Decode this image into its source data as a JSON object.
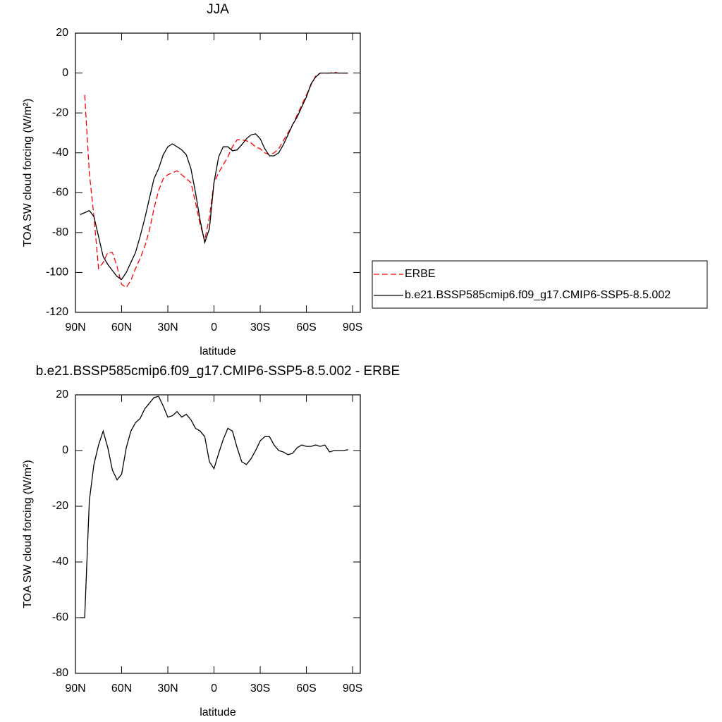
{
  "chart_data": [
    {
      "type": "line",
      "title": "JJA",
      "x_label": "latitude",
      "y_label": "TOA SW cloud forcing (W/m²)",
      "x": [
        87,
        84,
        81,
        78,
        75,
        72,
        69,
        66,
        63,
        60,
        57,
        54,
        51,
        48,
        45,
        42,
        39,
        36,
        33,
        30,
        27,
        24,
        21,
        18,
        15,
        12,
        9,
        6,
        3,
        0,
        -3,
        -6,
        -9,
        -12,
        -15,
        -18,
        -21,
        -24,
        -27,
        -30,
        -33,
        -36,
        -39,
        -42,
        -45,
        -48,
        -51,
        -54,
        -57,
        -60,
        -63,
        -66,
        -69,
        -72,
        -75,
        -78,
        -81,
        -84,
        -87
      ],
      "series": [
        {
          "name": "ERBE",
          "color": "#ff0000",
          "line_style": "dashed",
          "values": [
            null,
            -11,
            -50,
            -72,
            -98,
            -95,
            -90,
            -90,
            -97,
            -106,
            -107.5,
            -104,
            -98,
            -93,
            -87,
            -79,
            -68,
            -59,
            -53,
            -51,
            -50,
            -49,
            -51,
            -53,
            -55,
            -65,
            -76,
            -84,
            -72,
            -55,
            -50,
            -46,
            -42,
            -37,
            -33.5,
            -33.5,
            -34,
            -35,
            -37,
            -38,
            -40,
            -41,
            -40,
            -38,
            -34,
            -30,
            -26,
            -21,
            -16,
            -11,
            -6,
            -1.5,
            0,
            0,
            0,
            0.5,
            0,
            0,
            0
          ]
        },
        {
          "name": "b.e21.BSSP585cmip6.f09_g17.CMIP6-SSP5-8.5.002",
          "color": "#000000",
          "line_style": "solid",
          "values": [
            -71,
            -70,
            -69,
            -72,
            -82,
            -92,
            -96,
            -99,
            -102,
            -103.5,
            -100,
            -95,
            -90,
            -82,
            -73,
            -63,
            -53,
            -48,
            -41,
            -37,
            -35.5,
            -37,
            -38.5,
            -41,
            -48,
            -60,
            -74,
            -85,
            -78,
            -55,
            -42,
            -37,
            -37,
            -39,
            -38.5,
            -36,
            -33,
            -31,
            -30.5,
            -33,
            -38,
            -41.5,
            -41.5,
            -40,
            -36,
            -31,
            -26,
            -22,
            -17,
            -12,
            -5.5,
            -2,
            0,
            0,
            0,
            0,
            0,
            0,
            0
          ]
        }
      ],
      "xlim": [
        90,
        -95
      ],
      "xticks": [
        {
          "value": 90,
          "label": "90N"
        },
        {
          "value": 60,
          "label": "60N"
        },
        {
          "value": 30,
          "label": "30N"
        },
        0,
        {
          "value": -30,
          "label": "30S"
        },
        {
          "value": -60,
          "label": "60S"
        },
        {
          "value": -90,
          "label": "90S"
        }
      ],
      "ylim": [
        -120,
        20
      ],
      "yticks": [
        20,
        0,
        -20,
        -40,
        -60,
        -80,
        -100,
        -120
      ],
      "grid": false,
      "legend": "right"
    },
    {
      "type": "line",
      "title": "b.e21.BSSP585cmip6.f09_g17.CMIP6-SSP5-8.5.002 - ERBE",
      "x_label": "latitude",
      "y_label": "TOA SW cloud forcing (W/m²)",
      "x": [
        87,
        84,
        81,
        78,
        75,
        72,
        69,
        66,
        63,
        60,
        57,
        54,
        51,
        48,
        45,
        42,
        39,
        36,
        33,
        30,
        27,
        24,
        21,
        18,
        15,
        12,
        9,
        6,
        3,
        0,
        -3,
        -6,
        -9,
        -12,
        -15,
        -18,
        -21,
        -24,
        -27,
        -30,
        -33,
        -36,
        -39,
        -42,
        -45,
        -48,
        -51,
        -54,
        -57,
        -60,
        -63,
        -66,
        -69,
        -72,
        -75,
        -78,
        -81,
        -84,
        -87
      ],
      "color": "#000000",
      "values": [
        -60,
        -60,
        -18,
        -5,
        2,
        7,
        1,
        -7,
        -10.5,
        -8.5,
        1,
        7,
        10,
        11.5,
        15,
        17,
        19,
        19.5,
        16,
        12,
        12.5,
        14,
        12,
        13,
        11,
        8,
        7,
        5,
        -4,
        -6.5,
        -1,
        4,
        8,
        7,
        1,
        -4,
        -5,
        -3,
        0,
        3.5,
        5,
        5,
        2,
        0,
        -0.5,
        -1.5,
        -1,
        1,
        2,
        1.5,
        1.5,
        2,
        1.5,
        2,
        -0.5,
        0,
        0,
        0,
        0.3
      ],
      "xlim": [
        90,
        -95
      ],
      "xticks": [
        {
          "value": 90,
          "label": "90N"
        },
        {
          "value": 60,
          "label": "60N"
        },
        {
          "value": 30,
          "label": "30N"
        },
        0,
        {
          "value": -30,
          "label": "30S"
        },
        {
          "value": -60,
          "label": "60S"
        },
        {
          "value": -90,
          "label": "90S"
        }
      ],
      "ylim": [
        -80,
        20
      ],
      "yticks": [
        20,
        0,
        -20,
        -40,
        -60,
        -80
      ],
      "grid": false
    }
  ]
}
